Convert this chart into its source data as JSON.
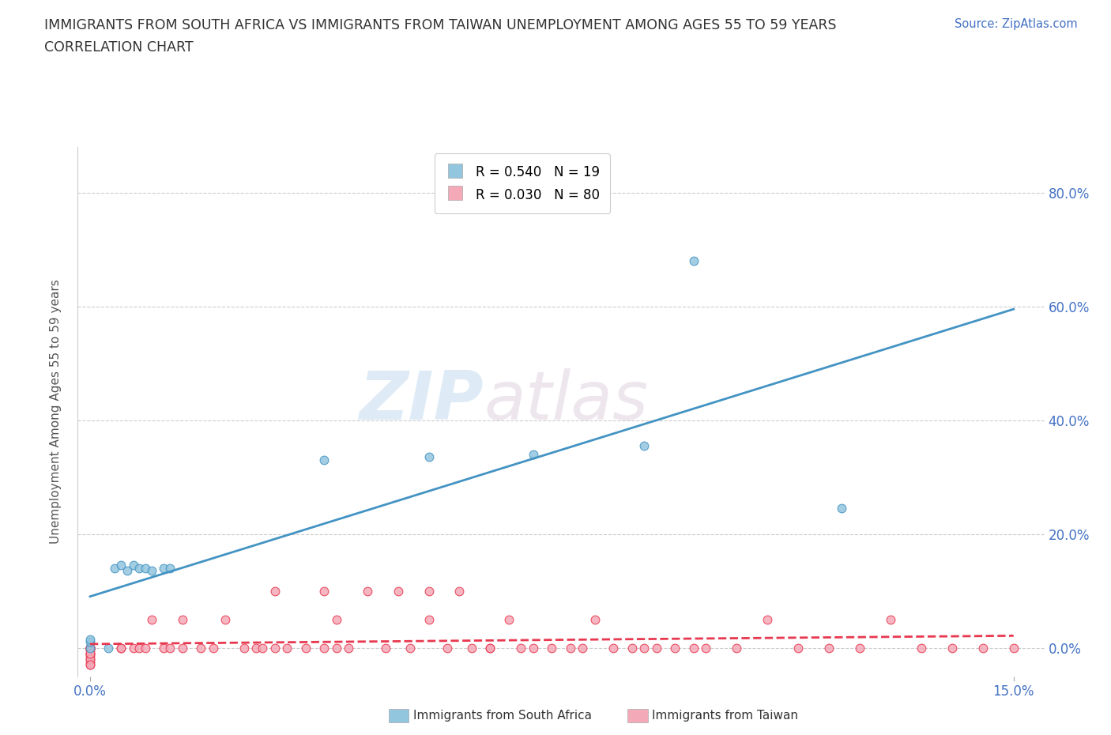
{
  "title_line1": "IMMIGRANTS FROM SOUTH AFRICA VS IMMIGRANTS FROM TAIWAN UNEMPLOYMENT AMONG AGES 55 TO 59 YEARS",
  "title_line2": "CORRELATION CHART",
  "source_text": "Source: ZipAtlas.com",
  "ylabel": "Unemployment Among Ages 55 to 59 years",
  "xlim": [
    -0.002,
    0.155
  ],
  "ylim": [
    -0.05,
    0.88
  ],
  "yticks": [
    0.0,
    0.2,
    0.4,
    0.6,
    0.8
  ],
  "ytick_labels": [
    "0.0%",
    "20.0%",
    "40.0%",
    "60.0%",
    "80.0%"
  ],
  "xticks": [
    0.0,
    0.15
  ],
  "xtick_labels": [
    "0.0%",
    "15.0%"
  ],
  "color_sa": "#92c5de",
  "color_tw": "#f4a9b8",
  "line_color_sa": "#4393c3",
  "line_color_tw": "#e8384f",
  "legend_r_sa": "R = 0.540",
  "legend_n_sa": "N = 19",
  "legend_r_tw": "R = 0.030",
  "legend_n_tw": "N = 80",
  "watermark_zip": "ZIP",
  "watermark_atlas": "atlas",
  "sa_points_x": [
    0.0,
    0.0,
    0.0,
    0.003,
    0.004,
    0.005,
    0.006,
    0.007,
    0.008,
    0.009,
    0.01,
    0.012,
    0.013,
    0.038,
    0.055,
    0.072,
    0.09,
    0.098,
    0.122
  ],
  "sa_points_y": [
    0.0,
    0.01,
    0.015,
    0.0,
    0.14,
    0.145,
    0.135,
    0.145,
    0.14,
    0.14,
    0.135,
    0.14,
    0.14,
    0.33,
    0.335,
    0.34,
    0.355,
    0.68,
    0.245
  ],
  "tw_points_x": [
    0.0,
    0.0,
    0.0,
    0.0,
    0.0,
    0.0,
    0.0,
    0.0,
    0.0,
    0.0,
    0.0,
    0.0,
    0.0,
    0.0,
    0.0,
    0.0,
    0.0,
    0.0,
    0.0,
    0.0,
    0.005,
    0.005,
    0.007,
    0.008,
    0.009,
    0.01,
    0.012,
    0.013,
    0.015,
    0.015,
    0.018,
    0.02,
    0.022,
    0.025,
    0.027,
    0.028,
    0.03,
    0.03,
    0.032,
    0.035,
    0.038,
    0.038,
    0.04,
    0.04,
    0.042,
    0.045,
    0.048,
    0.05,
    0.052,
    0.055,
    0.055,
    0.058,
    0.06,
    0.062,
    0.065,
    0.065,
    0.068,
    0.07,
    0.072,
    0.075,
    0.078,
    0.08,
    0.082,
    0.085,
    0.088,
    0.09,
    0.092,
    0.095,
    0.098,
    0.1,
    0.105,
    0.11,
    0.115,
    0.12,
    0.125,
    0.13,
    0.135,
    0.14,
    0.145,
    0.15
  ],
  "tw_points_y": [
    0.0,
    0.0,
    0.0,
    0.0,
    0.0,
    0.0,
    0.0,
    0.0,
    0.0,
    0.0,
    -0.01,
    -0.02,
    -0.025,
    -0.03,
    -0.015,
    -0.01,
    -0.005,
    -0.02,
    -0.01,
    -0.03,
    0.0,
    0.0,
    0.0,
    0.0,
    0.0,
    0.05,
    0.0,
    0.0,
    0.05,
    0.0,
    0.0,
    0.0,
    0.05,
    0.0,
    0.0,
    0.0,
    0.0,
    0.1,
    0.0,
    0.0,
    0.0,
    0.1,
    0.0,
    0.05,
    0.0,
    0.1,
    0.0,
    0.1,
    0.0,
    0.05,
    0.1,
    0.0,
    0.1,
    0.0,
    0.0,
    0.0,
    0.05,
    0.0,
    0.0,
    0.0,
    0.0,
    0.0,
    0.05,
    0.0,
    0.0,
    0.0,
    0.0,
    0.0,
    0.0,
    0.0,
    0.0,
    0.05,
    0.0,
    0.0,
    0.0,
    0.05,
    0.0,
    0.0,
    0.0,
    0.0
  ]
}
